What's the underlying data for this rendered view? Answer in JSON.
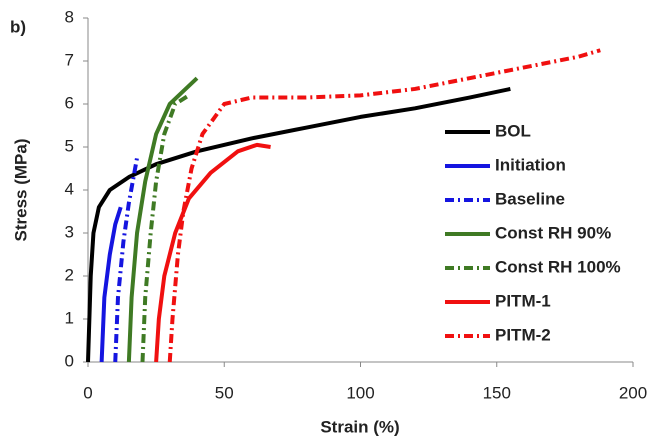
{
  "chart_data": {
    "type": "line",
    "panel_label": "b)",
    "x_label": "Strain (%)",
    "y_label": "Stress (MPa)",
    "xlim": [
      0,
      200
    ],
    "xticks": [
      0,
      50,
      100,
      150,
      200
    ],
    "ylim": [
      0,
      8
    ],
    "yticks": [
      0,
      1,
      2,
      3,
      4,
      5,
      6,
      7,
      8
    ],
    "grid": false,
    "legend": "lower right",
    "series": [
      {
        "name": "BOL",
        "color": "#000000",
        "dash": false,
        "x": [
          0,
          1,
          2,
          4,
          8,
          15,
          25,
          40,
          60,
          80,
          100,
          120,
          140,
          155
        ],
        "values": [
          0,
          2,
          3,
          3.6,
          4,
          4.3,
          4.6,
          4.9,
          5.2,
          5.45,
          5.7,
          5.9,
          6.15,
          6.35
        ]
      },
      {
        "name": "Initiation",
        "color": "#1515e0",
        "dash": false,
        "x": [
          5,
          6,
          8,
          10,
          12
        ],
        "values": [
          0,
          1.5,
          2.5,
          3.2,
          3.6
        ]
      },
      {
        "name": "Baseline",
        "color": "#1515e0",
        "dash": true,
        "x": [
          10,
          11,
          13,
          15,
          17,
          18
        ],
        "values": [
          0,
          1.5,
          2.8,
          3.7,
          4.4,
          4.75
        ]
      },
      {
        "name": "Const RH 90%",
        "color": "#3f7a24",
        "dash": false,
        "x": [
          15,
          16,
          18,
          21,
          25,
          30,
          35,
          40
        ],
        "values": [
          0,
          1.5,
          3,
          4.2,
          5.3,
          6,
          6.3,
          6.6
        ]
      },
      {
        "name": "Const RH 100%",
        "color": "#3f7a24",
        "dash": true,
        "x": [
          20,
          21,
          23,
          25,
          28,
          32,
          37
        ],
        "values": [
          0,
          1.5,
          3,
          4.2,
          5.3,
          6,
          6.2
        ]
      },
      {
        "name": "PITM-1",
        "color": "#f01010",
        "dash": false,
        "x": [
          25,
          26,
          28,
          32,
          37,
          45,
          55,
          62,
          67
        ],
        "values": [
          0,
          1,
          2,
          3,
          3.8,
          4.4,
          4.9,
          5.05,
          5
        ]
      },
      {
        "name": "PITM-2",
        "color": "#f01010",
        "dash": true,
        "x": [
          30,
          31,
          33,
          35,
          38,
          42,
          50,
          60,
          80,
          100,
          120,
          140,
          160,
          180,
          188
        ],
        "values": [
          0,
          1,
          2.5,
          3.5,
          4.5,
          5.3,
          6,
          6.15,
          6.15,
          6.2,
          6.35,
          6.6,
          6.85,
          7.1,
          7.25
        ]
      }
    ]
  }
}
